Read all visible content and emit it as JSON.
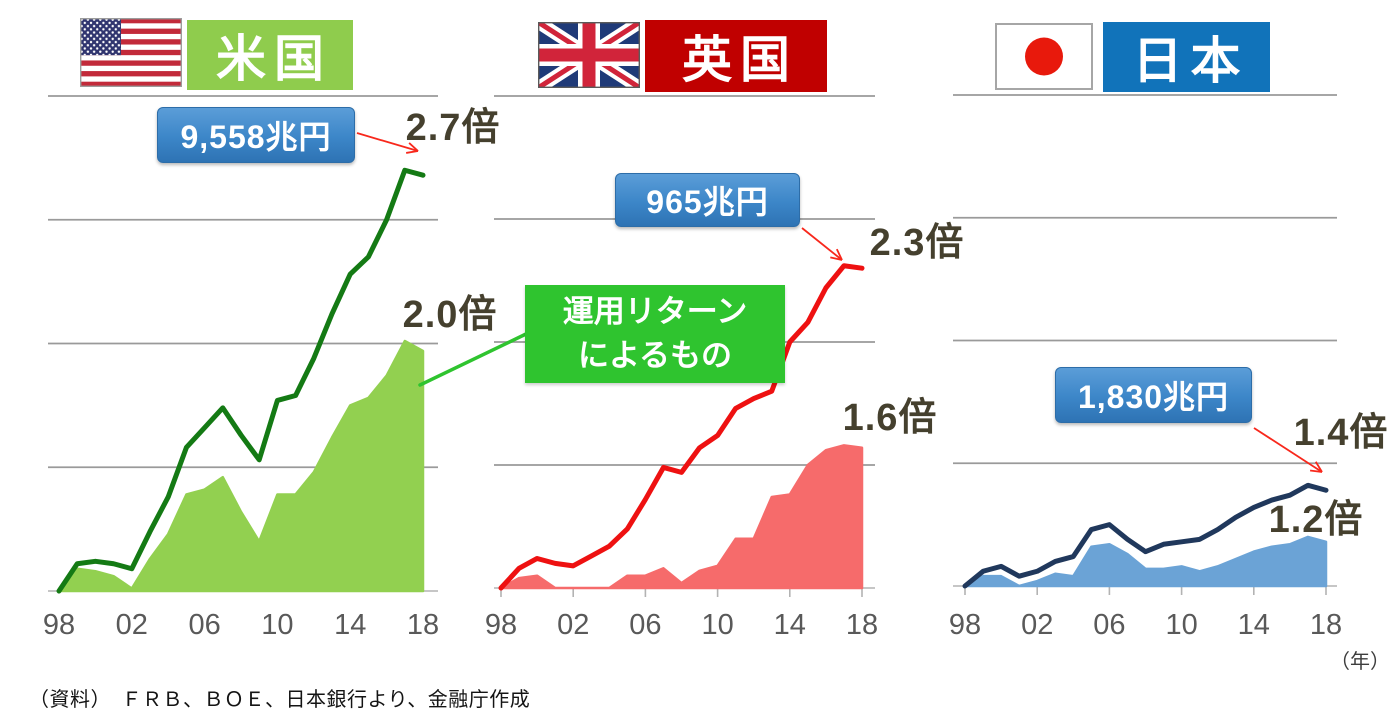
{
  "page": {
    "source_note": "（資料）　ＦＲＢ、ＢＯＥ、日本銀行より、金融庁作成",
    "year_axis_unit": "（年）",
    "x_tick_labels": [
      "98",
      "02",
      "06",
      "10",
      "14",
      "18"
    ],
    "colors": {
      "background": "#ffffff",
      "gridline": "#9a9a9a",
      "baseline": "#c6c6c6",
      "tick": "#b3b3b3",
      "axis_label": "#595959",
      "multiplier_label": "#45402e",
      "arrow": "#f8281c"
    },
    "badge": {
      "text_color": "#ffffff",
      "gradient_top": "#5b9dd8",
      "gradient_mid": "#3c86c8",
      "gradient_bottom": "#2e73b4",
      "border_color": "#2d6da8"
    },
    "callout": {
      "line1": "運用リターン",
      "line2": "によるもの",
      "bg": "#2fc42f",
      "text_color": "#ffffff"
    }
  },
  "panels": [
    {
      "id": "us",
      "header_label": "米国",
      "header_color": "#8fcc4d",
      "flag": "united-states"
    },
    {
      "id": "uk",
      "header_label": "英国",
      "header_color": "#c00000",
      "flag": "united-kingdom"
    },
    {
      "id": "jp",
      "header_label": "日本",
      "header_color": "#1173ba",
      "flag": "japan"
    }
  ],
  "chart_data": [
    {
      "id": "us",
      "type": "area",
      "title": "米国",
      "x": [
        1998,
        1999,
        2000,
        2001,
        2002,
        2003,
        2004,
        2005,
        2006,
        2007,
        2008,
        2009,
        2010,
        2011,
        2012,
        2013,
        2014,
        2015,
        2016,
        2017,
        2018
      ],
      "x_tick_labels": [
        "98",
        "02",
        "06",
        "10",
        "14",
        "18"
      ],
      "ylim": [
        1.0,
        3.0
      ],
      "gridline_step": 0.5,
      "series": [
        {
          "name": "household-financial-assets-multiple",
          "style": "line",
          "color": "#147a14",
          "values": [
            1.0,
            1.11,
            1.12,
            1.11,
            1.09,
            1.24,
            1.38,
            1.58,
            1.66,
            1.74,
            1.63,
            1.53,
            1.77,
            1.79,
            1.94,
            2.12,
            2.28,
            2.35,
            2.5,
            2.7,
            2.68
          ]
        },
        {
          "name": "investment-return-multiple",
          "style": "area",
          "color": "#92d050",
          "values": [
            1.0,
            1.09,
            1.08,
            1.06,
            1.01,
            1.13,
            1.23,
            1.39,
            1.41,
            1.46,
            1.32,
            1.2,
            1.39,
            1.39,
            1.48,
            1.62,
            1.75,
            1.78,
            1.87,
            2.01,
            1.97
          ]
        }
      ],
      "annotations": {
        "badge": "9,558兆円",
        "line_end": "2.7倍",
        "area_end": "2.0倍"
      }
    },
    {
      "id": "uk",
      "type": "area",
      "title": "英国",
      "x": [
        1998,
        1999,
        2000,
        2001,
        2002,
        2003,
        2004,
        2005,
        2006,
        2007,
        2008,
        2009,
        2010,
        2011,
        2012,
        2013,
        2014,
        2015,
        2016,
        2017,
        2018
      ],
      "x_tick_labels": [
        "98",
        "02",
        "06",
        "10",
        "14",
        "18"
      ],
      "ylim": [
        1.0,
        3.0
      ],
      "gridline_step": 0.5,
      "series": [
        {
          "name": "household-financial-assets-multiple",
          "style": "line",
          "color": "#ee1111",
          "values": [
            1.0,
            1.08,
            1.12,
            1.1,
            1.09,
            1.13,
            1.17,
            1.24,
            1.36,
            1.49,
            1.47,
            1.57,
            1.62,
            1.73,
            1.77,
            1.8,
            2.0,
            2.08,
            2.22,
            2.31,
            2.3
          ]
        },
        {
          "name": "investment-return-multiple",
          "style": "area",
          "color": "#f66b6b",
          "values": [
            1.0,
            1.04,
            1.05,
            1.0,
            1.0,
            1.0,
            1.0,
            1.05,
            1.05,
            1.08,
            1.02,
            1.07,
            1.09,
            1.2,
            1.2,
            1.37,
            1.38,
            1.5,
            1.56,
            1.58,
            1.57
          ]
        }
      ],
      "annotations": {
        "badge": "965兆円",
        "line_end": "2.3倍",
        "area_end": "1.6倍"
      }
    },
    {
      "id": "jp",
      "type": "area",
      "title": "日本",
      "x": [
        1998,
        1999,
        2000,
        2001,
        2002,
        2003,
        2004,
        2005,
        2006,
        2007,
        2008,
        2009,
        2010,
        2011,
        2012,
        2013,
        2014,
        2015,
        2016,
        2017,
        2018
      ],
      "x_tick_labels": [
        "98",
        "02",
        "06",
        "10",
        "14",
        "18"
      ],
      "ylim": [
        1.0,
        3.0
      ],
      "gridline_step": 0.5,
      "series": [
        {
          "name": "household-financial-assets-multiple",
          "style": "line",
          "color": "#20385c",
          "values": [
            1.0,
            1.06,
            1.08,
            1.04,
            1.06,
            1.1,
            1.12,
            1.23,
            1.25,
            1.19,
            1.14,
            1.17,
            1.18,
            1.19,
            1.23,
            1.28,
            1.32,
            1.35,
            1.37,
            1.41,
            1.39
          ]
        },
        {
          "name": "investment-return-multiple",
          "style": "area",
          "color": "#6ba3d6",
          "values": [
            1.0,
            1.04,
            1.04,
            1.0,
            1.02,
            1.05,
            1.04,
            1.16,
            1.17,
            1.13,
            1.07,
            1.07,
            1.08,
            1.06,
            1.08,
            1.11,
            1.14,
            1.16,
            1.17,
            1.2,
            1.18
          ]
        }
      ],
      "annotations": {
        "badge": "1,830兆円",
        "line_end": "1.4倍",
        "area_end": "1.2倍"
      }
    }
  ]
}
